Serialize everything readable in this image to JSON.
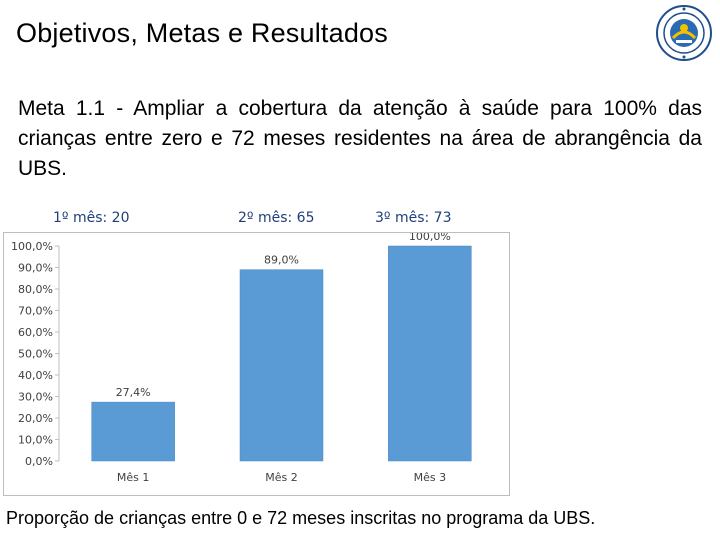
{
  "title": "Objetivos, Metas e Resultados",
  "meta_text": "Meta 1.1 - Ampliar a cobertura da atenção à saúde para 100% das crianças entre zero e 72 meses residentes na área de abrangência da UBS.",
  "month_counts": [
    "1º mês:   20",
    "2º mês: 65",
    "3º mês: 73"
  ],
  "caption": "Proporção de crianças entre 0 e 72 meses inscritas no programa da UBS.",
  "colors": {
    "bar": "#5b9bd5",
    "bar_stroke": "#4a88c4",
    "grid": "#d9d9d9",
    "axis_text": "#404040"
  },
  "chart_data": {
    "type": "bar",
    "categories": [
      "Mês 1",
      "Mês 2",
      "Mês 3"
    ],
    "values": [
      27.4,
      89.0,
      100.0
    ],
    "data_labels": [
      "27,4%",
      "89,0%",
      "100,0%"
    ],
    "yticks": [
      "0,0%",
      "10,0%",
      "20,0%",
      "30,0%",
      "40,0%",
      "50,0%",
      "60,0%",
      "70,0%",
      "80,0%",
      "90,0%",
      "100,0%"
    ],
    "ylim": [
      0,
      100
    ],
    "grid": false,
    "title": "",
    "xlabel": "",
    "ylabel": ""
  }
}
